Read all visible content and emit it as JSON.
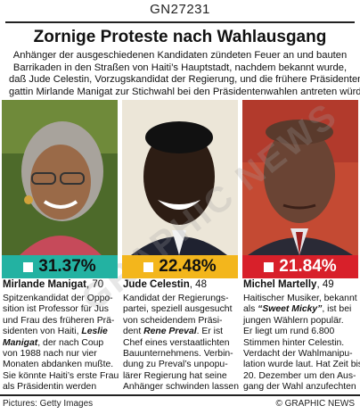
{
  "graphic_code": "GN27231",
  "title": "Zornige Proteste nach Wahlausgang",
  "intro_lines": [
    "Anhänger der ausgeschiedenen Kandidaten zündeten Feuer an und bauten",
    "Barrikaden in den Straßen von Haiti’s Hauptstadt, nachdem bekannt wurde,",
    "daß Jude Celestin, Vorzugskandidat der Regierung, und die frühere Präsidenten-",
    "gattin Mirlande Manigat zur Stichwahl bei den Präsidentenwahlen antreten würden"
  ],
  "colors": {
    "teal": "#23b2a2",
    "yellow": "#f3b61c",
    "red": "#d8202a"
  },
  "chart_data": {
    "type": "table",
    "categories": [
      "Mirlande Manigat",
      "Jude Celestin",
      "Michel Martelly"
    ],
    "values": [
      31.37,
      22.48,
      21.84
    ]
  },
  "candidates": [
    {
      "percent": "31.37%",
      "name": "Mirlande Manigat",
      "age": ", 70",
      "desc": [
        {
          "t": "Spitzenkandidat der Oppo-"
        },
        {
          "t": "sition ist Professor für Jus"
        },
        {
          "t": "und Frau des früheren Prä-"
        },
        {
          "t": "sidenten von Haiti, ",
          "bi": "Leslie"
        },
        {
          "bi": "Manigat",
          "t2": ", der nach Coup"
        },
        {
          "t": "von 1988 nach nur vier"
        },
        {
          "t": "Monaten abdanken mußte."
        },
        {
          "t": "Sie könnte Haiti’s erste Frau"
        },
        {
          "t": "als Präsidentin werden"
        }
      ]
    },
    {
      "percent": "22.48%",
      "name": "Jude Celestin",
      "age": ", 48",
      "desc": [
        {
          "t": "Kandidat der Regierungs-"
        },
        {
          "t": "partei, speziell ausgesucht"
        },
        {
          "t": "von scheidendem Präsi-"
        },
        {
          "t": "dent ",
          "bi": "Rene Preval",
          "t2": ". Er ist"
        },
        {
          "t": "Chef eines verstaatlichten"
        },
        {
          "t": "Bauunternehmens. Verbin-"
        },
        {
          "t": "dung zu Preval’s unpopu-"
        },
        {
          "t": "lärer Regierung hat seine"
        },
        {
          "t": "Anhänger schwinden lassen"
        }
      ]
    },
    {
      "percent": "21.84%",
      "name": "Michel Martelly",
      "age": ", 49",
      "desc": [
        {
          "t": "Haitischer Musiker, bekannt"
        },
        {
          "t": "als ",
          "bi": "“Sweet Micky”",
          "t2": ", ist bei"
        },
        {
          "t": "jungen Wählern populär."
        },
        {
          "t": "Er liegt um rund 6.800"
        },
        {
          "t": "Stimmen hinter Celestin."
        },
        {
          "t": "Verdacht der Wahlmanipu-"
        },
        {
          "t": "lation wurde laut. Hat Zeit bis"
        },
        {
          "t": "20. Dezember um den Aus-"
        },
        {
          "t": "gang der Wahl anzufechten"
        }
      ]
    }
  ],
  "credit": "Pictures: Getty Images",
  "brand": "© GRAPHIC NEWS",
  "watermark": "GRAPHIC NEWS"
}
